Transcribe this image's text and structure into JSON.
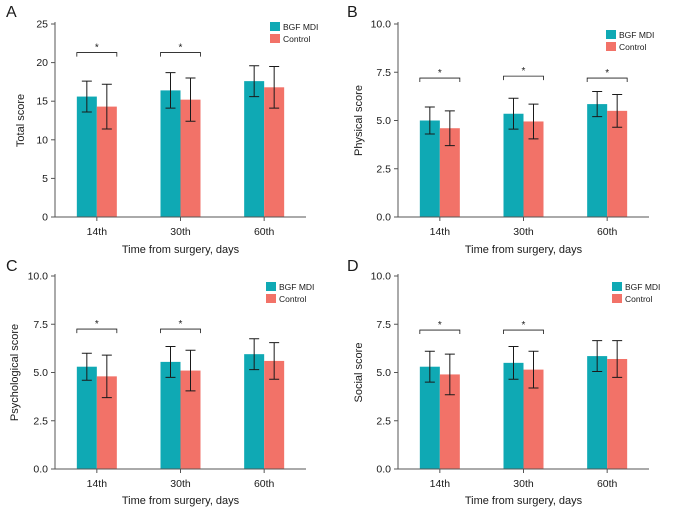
{
  "figure": {
    "legend_labels": [
      "BGF MDI",
      "Control"
    ],
    "colors": {
      "bgf": "#0fa9b4",
      "control": "#f27268",
      "axis": "#555555",
      "ink": "#1a1a1a"
    }
  },
  "chart_data": [
    {
      "type": "bar",
      "panel": "A",
      "xlabel": "Time from surgery, days",
      "ylabel": "Total score",
      "categories": [
        "14th",
        "30th",
        "60th"
      ],
      "ylim": [
        0,
        25
      ],
      "yticks": [
        0,
        5,
        10,
        15,
        20,
        25
      ],
      "ytick_labels": [
        "0",
        "5",
        "10",
        "15",
        "20",
        "25"
      ],
      "legend_position": "top-right",
      "series": [
        {
          "name": "BGF MDI",
          "values": [
            15.6,
            16.4,
            17.6
          ],
          "errors": [
            2.0,
            2.3,
            2.0
          ]
        },
        {
          "name": "Control",
          "values": [
            14.3,
            15.2,
            16.8
          ],
          "errors": [
            2.9,
            2.8,
            2.7
          ]
        }
      ],
      "significance": [
        {
          "category": "14th",
          "label": "*",
          "y": 21.3
        },
        {
          "category": "30th",
          "label": "*",
          "y": 21.3
        }
      ]
    },
    {
      "type": "bar",
      "panel": "B",
      "xlabel": "Time from surgery, days",
      "ylabel": "Physical score",
      "categories": [
        "14th",
        "30th",
        "60th"
      ],
      "ylim": [
        0,
        10
      ],
      "yticks": [
        0,
        2.5,
        5,
        7.5,
        10
      ],
      "ytick_labels": [
        "0.0",
        "2.5",
        "5.0",
        "7.5",
        "10.0"
      ],
      "legend_position": "top-right",
      "series": [
        {
          "name": "BGF MDI",
          "values": [
            5.0,
            5.35,
            5.85
          ],
          "errors": [
            0.7,
            0.8,
            0.65
          ]
        },
        {
          "name": "Control",
          "values": [
            4.6,
            4.95,
            5.5
          ],
          "errors": [
            0.9,
            0.9,
            0.85
          ]
        }
      ],
      "significance": [
        {
          "category": "14th",
          "label": "*",
          "y": 7.2
        },
        {
          "category": "30th",
          "label": "*",
          "y": 7.3
        },
        {
          "category": "60th",
          "label": "*",
          "y": 7.2
        }
      ]
    },
    {
      "type": "bar",
      "panel": "C",
      "xlabel": "Time from surgery, days",
      "ylabel": "Psychological score",
      "categories": [
        "14th",
        "30th",
        "60th"
      ],
      "ylim": [
        0,
        10
      ],
      "yticks": [
        0,
        2.5,
        5,
        7.5,
        10
      ],
      "ytick_labels": [
        "0.0",
        "2.5",
        "5.0",
        "7.5",
        "10.0"
      ],
      "legend_position": "top-right",
      "series": [
        {
          "name": "BGF MDI",
          "values": [
            5.3,
            5.55,
            5.95
          ],
          "errors": [
            0.7,
            0.8,
            0.8
          ]
        },
        {
          "name": "Control",
          "values": [
            4.8,
            5.1,
            5.6
          ],
          "errors": [
            1.1,
            1.05,
            0.95
          ]
        }
      ],
      "significance": [
        {
          "category": "14th",
          "label": "*",
          "y": 7.25
        },
        {
          "category": "30th",
          "label": "*",
          "y": 7.25
        }
      ]
    },
    {
      "type": "bar",
      "panel": "D",
      "xlabel": "Time from surgery, days",
      "ylabel": "Social score",
      "categories": [
        "14th",
        "30th",
        "60th"
      ],
      "ylim": [
        0,
        10
      ],
      "yticks": [
        0,
        2.5,
        5,
        7.5,
        10
      ],
      "ytick_labels": [
        "0.0",
        "2.5",
        "5.0",
        "7.5",
        "10.0"
      ],
      "legend_position": "top-right",
      "series": [
        {
          "name": "BGF MDI",
          "values": [
            5.3,
            5.5,
            5.85
          ],
          "errors": [
            0.8,
            0.85,
            0.8
          ]
        },
        {
          "name": "Control",
          "values": [
            4.9,
            5.15,
            5.7
          ],
          "errors": [
            1.05,
            0.95,
            0.95
          ]
        }
      ],
      "significance": [
        {
          "category": "14th",
          "label": "*",
          "y": 7.2
        },
        {
          "category": "30th",
          "label": "*",
          "y": 7.2
        }
      ]
    }
  ]
}
